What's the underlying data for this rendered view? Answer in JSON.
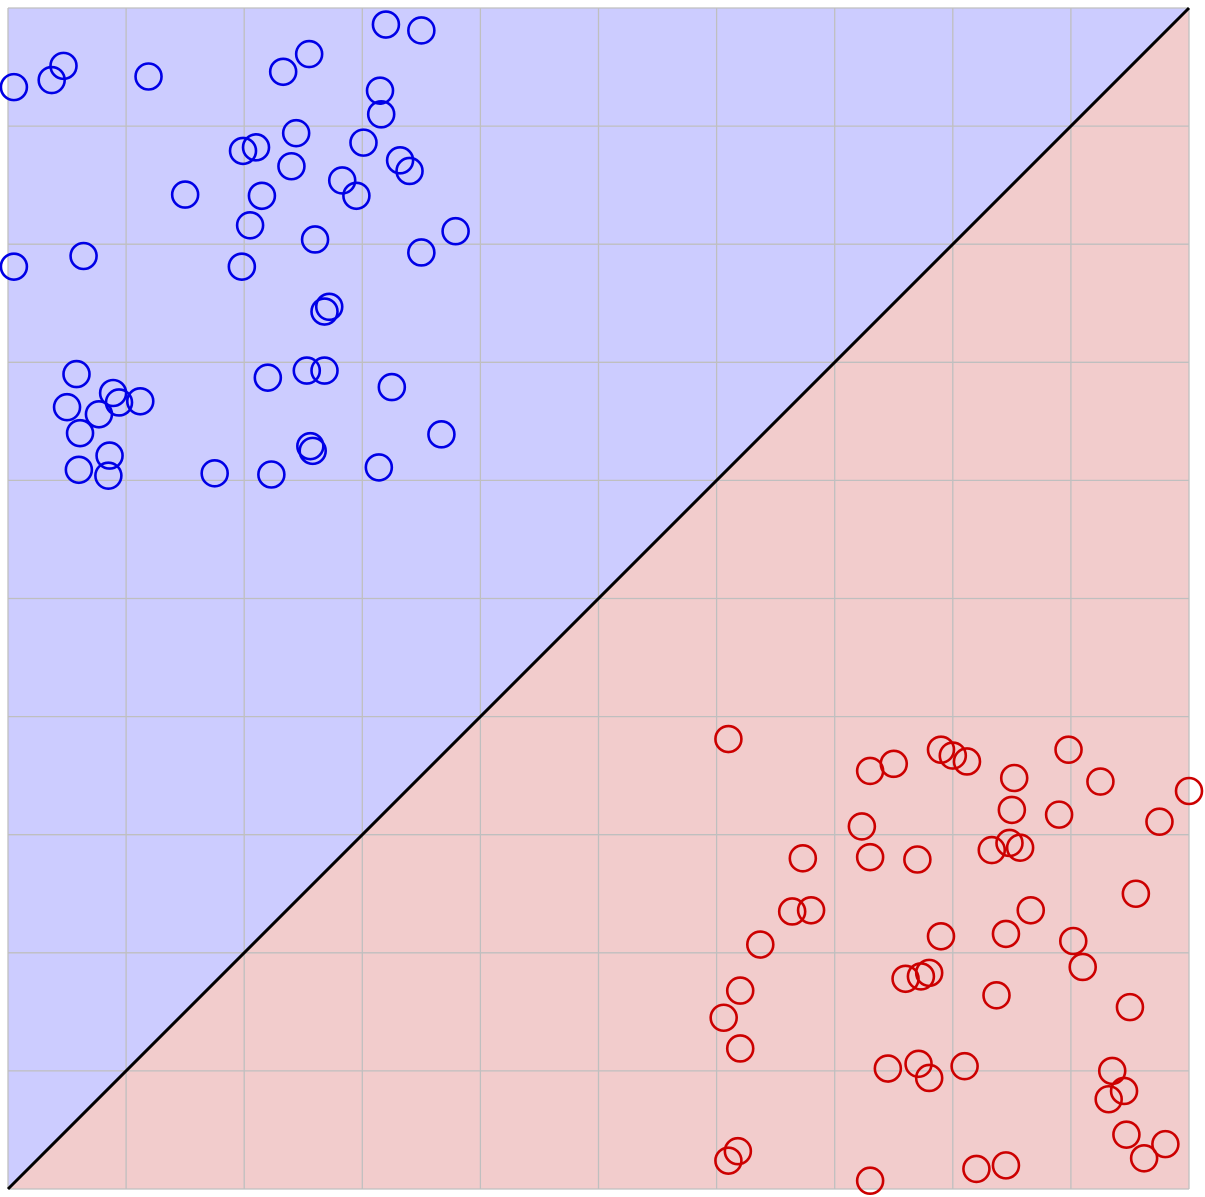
{
  "chart_data": {
    "type": "scatter",
    "title": "",
    "xlabel": "",
    "ylabel": "",
    "xlim": [
      0,
      10
    ],
    "ylim": [
      0,
      10
    ],
    "grid": true,
    "grid_step": 1,
    "decision_boundary": {
      "from": [
        0,
        0
      ],
      "to": [
        10,
        10
      ]
    },
    "regions": [
      {
        "id": "upper-left",
        "color": "#ccccff"
      },
      {
        "id": "lower-right",
        "color": "#f2cccc"
      }
    ],
    "series": [
      {
        "id": "blue-class",
        "color": "#0000e6",
        "points": [
          [
            0.05,
            9.33
          ],
          [
            0.37,
            9.39
          ],
          [
            0.47,
            9.51
          ],
          [
            1.19,
            9.42
          ],
          [
            2.33,
            9.46
          ],
          [
            2.55,
            9.61
          ],
          [
            3.2,
            9.86
          ],
          [
            3.5,
            9.81
          ],
          [
            2.1,
            8.82
          ],
          [
            2.44,
            8.94
          ],
          [
            3.16,
            9.1
          ],
          [
            3.15,
            9.3
          ],
          [
            1.99,
            8.79
          ],
          [
            2.15,
            8.41
          ],
          [
            2.4,
            8.66
          ],
          [
            3.01,
            8.86
          ],
          [
            3.32,
            8.71
          ],
          [
            3.4,
            8.62
          ],
          [
            1.5,
            8.42
          ],
          [
            2.83,
            8.54
          ],
          [
            2.95,
            8.41
          ],
          [
            2.05,
            8.16
          ],
          [
            2.6,
            8.04
          ],
          [
            3.79,
            8.11
          ],
          [
            0.05,
            7.81
          ],
          [
            0.64,
            7.9
          ],
          [
            1.98,
            7.81
          ],
          [
            3.5,
            7.93
          ],
          [
            2.68,
            7.43
          ],
          [
            2.72,
            7.47
          ],
          [
            0.58,
            6.9
          ],
          [
            2.2,
            6.87
          ],
          [
            2.53,
            6.93
          ],
          [
            2.68,
            6.93
          ],
          [
            3.25,
            6.79
          ],
          [
            0.89,
            6.74
          ],
          [
            0.94,
            6.66
          ],
          [
            1.12,
            6.67
          ],
          [
            0.5,
            6.62
          ],
          [
            0.77,
            6.56
          ],
          [
            0.61,
            6.4
          ],
          [
            0.86,
            6.21
          ],
          [
            0.6,
            6.09
          ],
          [
            0.85,
            6.04
          ],
          [
            1.75,
            6.06
          ],
          [
            2.23,
            6.05
          ],
          [
            2.56,
            6.29
          ],
          [
            2.58,
            6.25
          ],
          [
            3.14,
            6.11
          ],
          [
            3.67,
            6.39
          ]
        ]
      },
      {
        "id": "red-class",
        "color": "#cc0000",
        "points": [
          [
            6.1,
            3.81
          ],
          [
            7.3,
            3.54
          ],
          [
            7.5,
            3.6
          ],
          [
            7.9,
            3.72
          ],
          [
            8.0,
            3.67
          ],
          [
            8.12,
            3.62
          ],
          [
            8.98,
            3.72
          ],
          [
            9.25,
            3.45
          ],
          [
            10.0,
            3.37
          ],
          [
            7.23,
            3.07
          ],
          [
            8.52,
            3.48
          ],
          [
            8.9,
            3.17
          ],
          [
            9.75,
            3.11
          ],
          [
            8.5,
            3.21
          ],
          [
            8.33,
            2.87
          ],
          [
            6.73,
            2.8
          ],
          [
            7.3,
            2.81
          ],
          [
            7.7,
            2.79
          ],
          [
            8.48,
            2.93
          ],
          [
            8.57,
            2.89
          ],
          [
            8.66,
            2.36
          ],
          [
            9.55,
            2.5
          ],
          [
            6.64,
            2.35
          ],
          [
            6.8,
            2.36
          ],
          [
            7.9,
            2.14
          ],
          [
            6.37,
            2.07
          ],
          [
            8.45,
            2.16
          ],
          [
            9.02,
            2.1
          ],
          [
            9.1,
            1.88
          ],
          [
            7.73,
            1.8
          ],
          [
            7.8,
            1.83
          ],
          [
            7.6,
            1.78
          ],
          [
            6.2,
            1.68
          ],
          [
            8.37,
            1.64
          ],
          [
            9.5,
            1.54
          ],
          [
            6.06,
            1.45
          ],
          [
            6.2,
            1.19
          ],
          [
            7.71,
            1.06
          ],
          [
            8.1,
            1.04
          ],
          [
            7.45,
            1.02
          ],
          [
            7.8,
            0.94
          ],
          [
            9.35,
            1.0
          ],
          [
            9.45,
            0.83
          ],
          [
            9.32,
            0.76
          ],
          [
            9.47,
            0.46
          ],
          [
            9.8,
            0.38
          ],
          [
            6.18,
            0.32
          ],
          [
            6.1,
            0.24
          ],
          [
            9.62,
            0.26
          ],
          [
            8.2,
            0.17
          ],
          [
            8.45,
            0.2
          ],
          [
            7.3,
            0.07
          ]
        ]
      }
    ]
  }
}
